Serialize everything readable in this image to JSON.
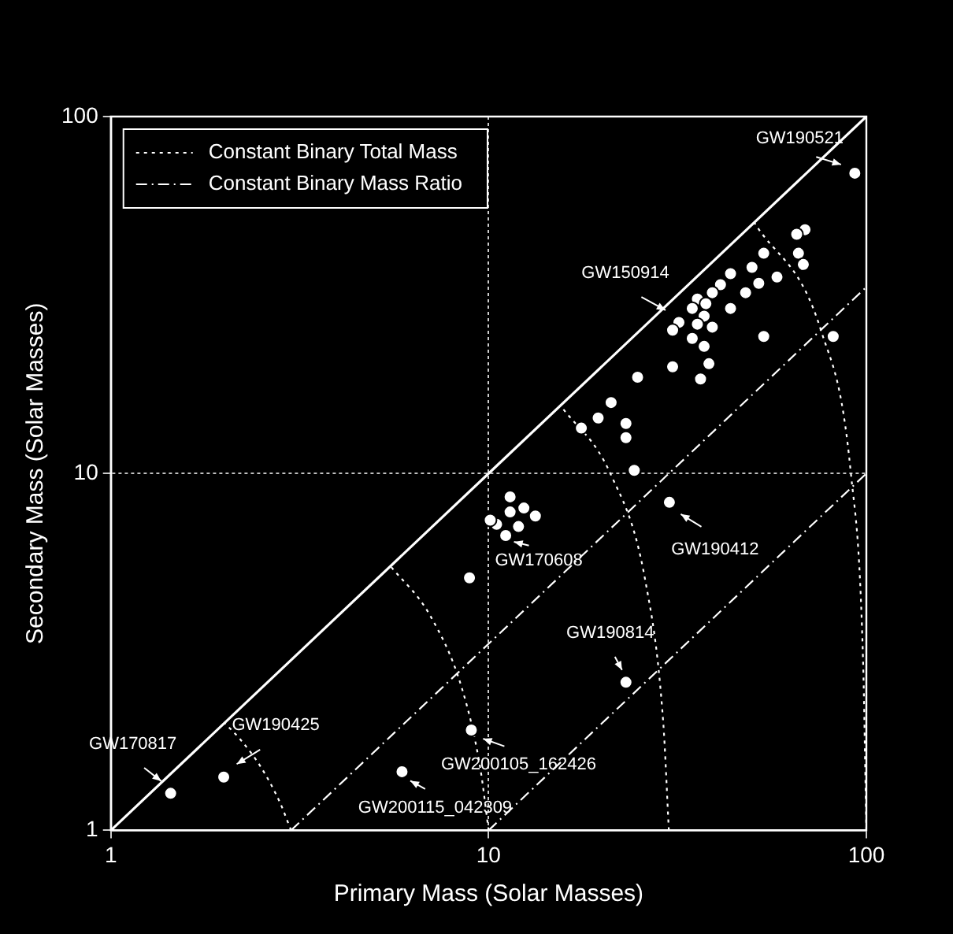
{
  "chart_data": {
    "type": "scatter",
    "xlabel": "Primary Mass (Solar Masses)",
    "ylabel": "Secondary Mass (Solar Masses)",
    "log": "xy",
    "xlim": [
      1,
      100
    ],
    "ylim": [
      1,
      100
    ],
    "xticks": [
      1,
      10,
      100
    ],
    "yticks": [
      1,
      10,
      100
    ],
    "grid": true,
    "legend": "top left",
    "marker": "circle",
    "series": [
      {
        "color": "#ffffff",
        "x": [
          68.8,
          65.4,
          53.5,
          66.1,
          68.1,
          49.8,
          58.0,
          51.9,
          43.7,
          41.1,
          39.1,
          47.9,
          35.7,
          37.6,
          43.7,
          34.6,
          37.2,
          31.9,
          35.7,
          39.1,
          30.7,
          34.6,
          37.2,
          53.5,
          81.7,
          38.3,
          30.7,
          36.4,
          24.8,
          21.1,
          19.5,
          17.6,
          23.1,
          23.1,
          24.3,
          30.1,
          93.2,
          10.5,
          11.4,
          12.4,
          13.3,
          12.0,
          11.1,
          10.1,
          11.4,
          8.9,
          9.0,
          5.9,
          23.1,
          1.99,
          1.44
        ],
        "values": [
          48.2,
          46.8,
          41.4,
          41.4,
          38.5,
          37.8,
          35.5,
          34.1,
          36.3,
          33.8,
          32.1,
          32.1,
          30.8,
          29.9,
          29.0,
          29.0,
          27.6,
          26.5,
          26.2,
          25.7,
          25.2,
          23.9,
          22.7,
          24.2,
          24.2,
          20.3,
          19.9,
          18.4,
          18.6,
          15.8,
          14.3,
          13.4,
          13.8,
          12.6,
          10.2,
          8.3,
          69.4,
          7.2,
          7.8,
          8.0,
          7.6,
          7.1,
          6.7,
          7.4,
          8.6,
          5.1,
          1.91,
          1.46,
          2.6,
          1.41,
          1.27
        ]
      },
      {
        "type": "line",
        "marker": "none",
        "color": "#ffffff",
        "line_style": "solid",
        "x": [
          1,
          100
        ],
        "values": [
          1,
          100
        ]
      },
      {
        "type": "line",
        "marker": "none",
        "name": "Constant Binary Total Mass",
        "color": "#ffffff",
        "line_style": "dotted",
        "x": [
          3,
          2.8,
          2.5,
          2.2,
          2
        ],
        "values": [
          1,
          1.2,
          1.5,
          1.8,
          2
        ]
      },
      {
        "type": "line",
        "marker": "none",
        "color": "#ffffff",
        "line_style": "dotted",
        "x": [
          10,
          9.5,
          8.5,
          7,
          5.5
        ],
        "values": [
          1,
          1.5,
          2.5,
          4,
          5.5
        ]
      },
      {
        "type": "line",
        "marker": "none",
        "color": "#ffffff",
        "line_style": "dotted",
        "x": [
          30,
          29,
          26,
          21,
          15.5
        ],
        "values": [
          1,
          2,
          5,
          10,
          15.5
        ]
      },
      {
        "type": "line",
        "marker": "none",
        "color": "#ffffff",
        "line_style": "dotted",
        "x": [
          100,
          98,
          91,
          76,
          50.5
        ],
        "values": [
          1,
          3,
          10,
          25,
          50.5
        ]
      },
      {
        "type": "line",
        "marker": "none",
        "name": "Constant Binary Mass Ratio",
        "color": "#ffffff",
        "line_style": "dashed",
        "x": [
          3,
          100
        ],
        "values": [
          1,
          33.3
        ]
      },
      {
        "type": "line",
        "marker": "none",
        "color": "#ffffff",
        "line_style": "dashed",
        "x": [
          10,
          100
        ],
        "values": [
          1,
          10
        ]
      }
    ],
    "annotations": [
      {
        "text": "GW190521",
        "x": 93.2,
        "y": 69.4
      },
      {
        "text": "GW150914",
        "x": 31.9,
        "y": 26.5
      },
      {
        "text": "GW170608",
        "x": 11.1,
        "y": 6.7
      },
      {
        "text": "GW190412",
        "x": 30.1,
        "y": 8.3
      },
      {
        "text": "GW190814",
        "x": 23.1,
        "y": 2.6
      },
      {
        "text": "GW200105_162426",
        "x": 9.0,
        "y": 1.91
      },
      {
        "text": "GW200115_042309",
        "x": 5.9,
        "y": 1.46
      },
      {
        "text": "GW190425",
        "x": 1.99,
        "y": 1.41
      },
      {
        "text": "GW170817",
        "x": 1.44,
        "y": 1.27
      }
    ]
  }
}
